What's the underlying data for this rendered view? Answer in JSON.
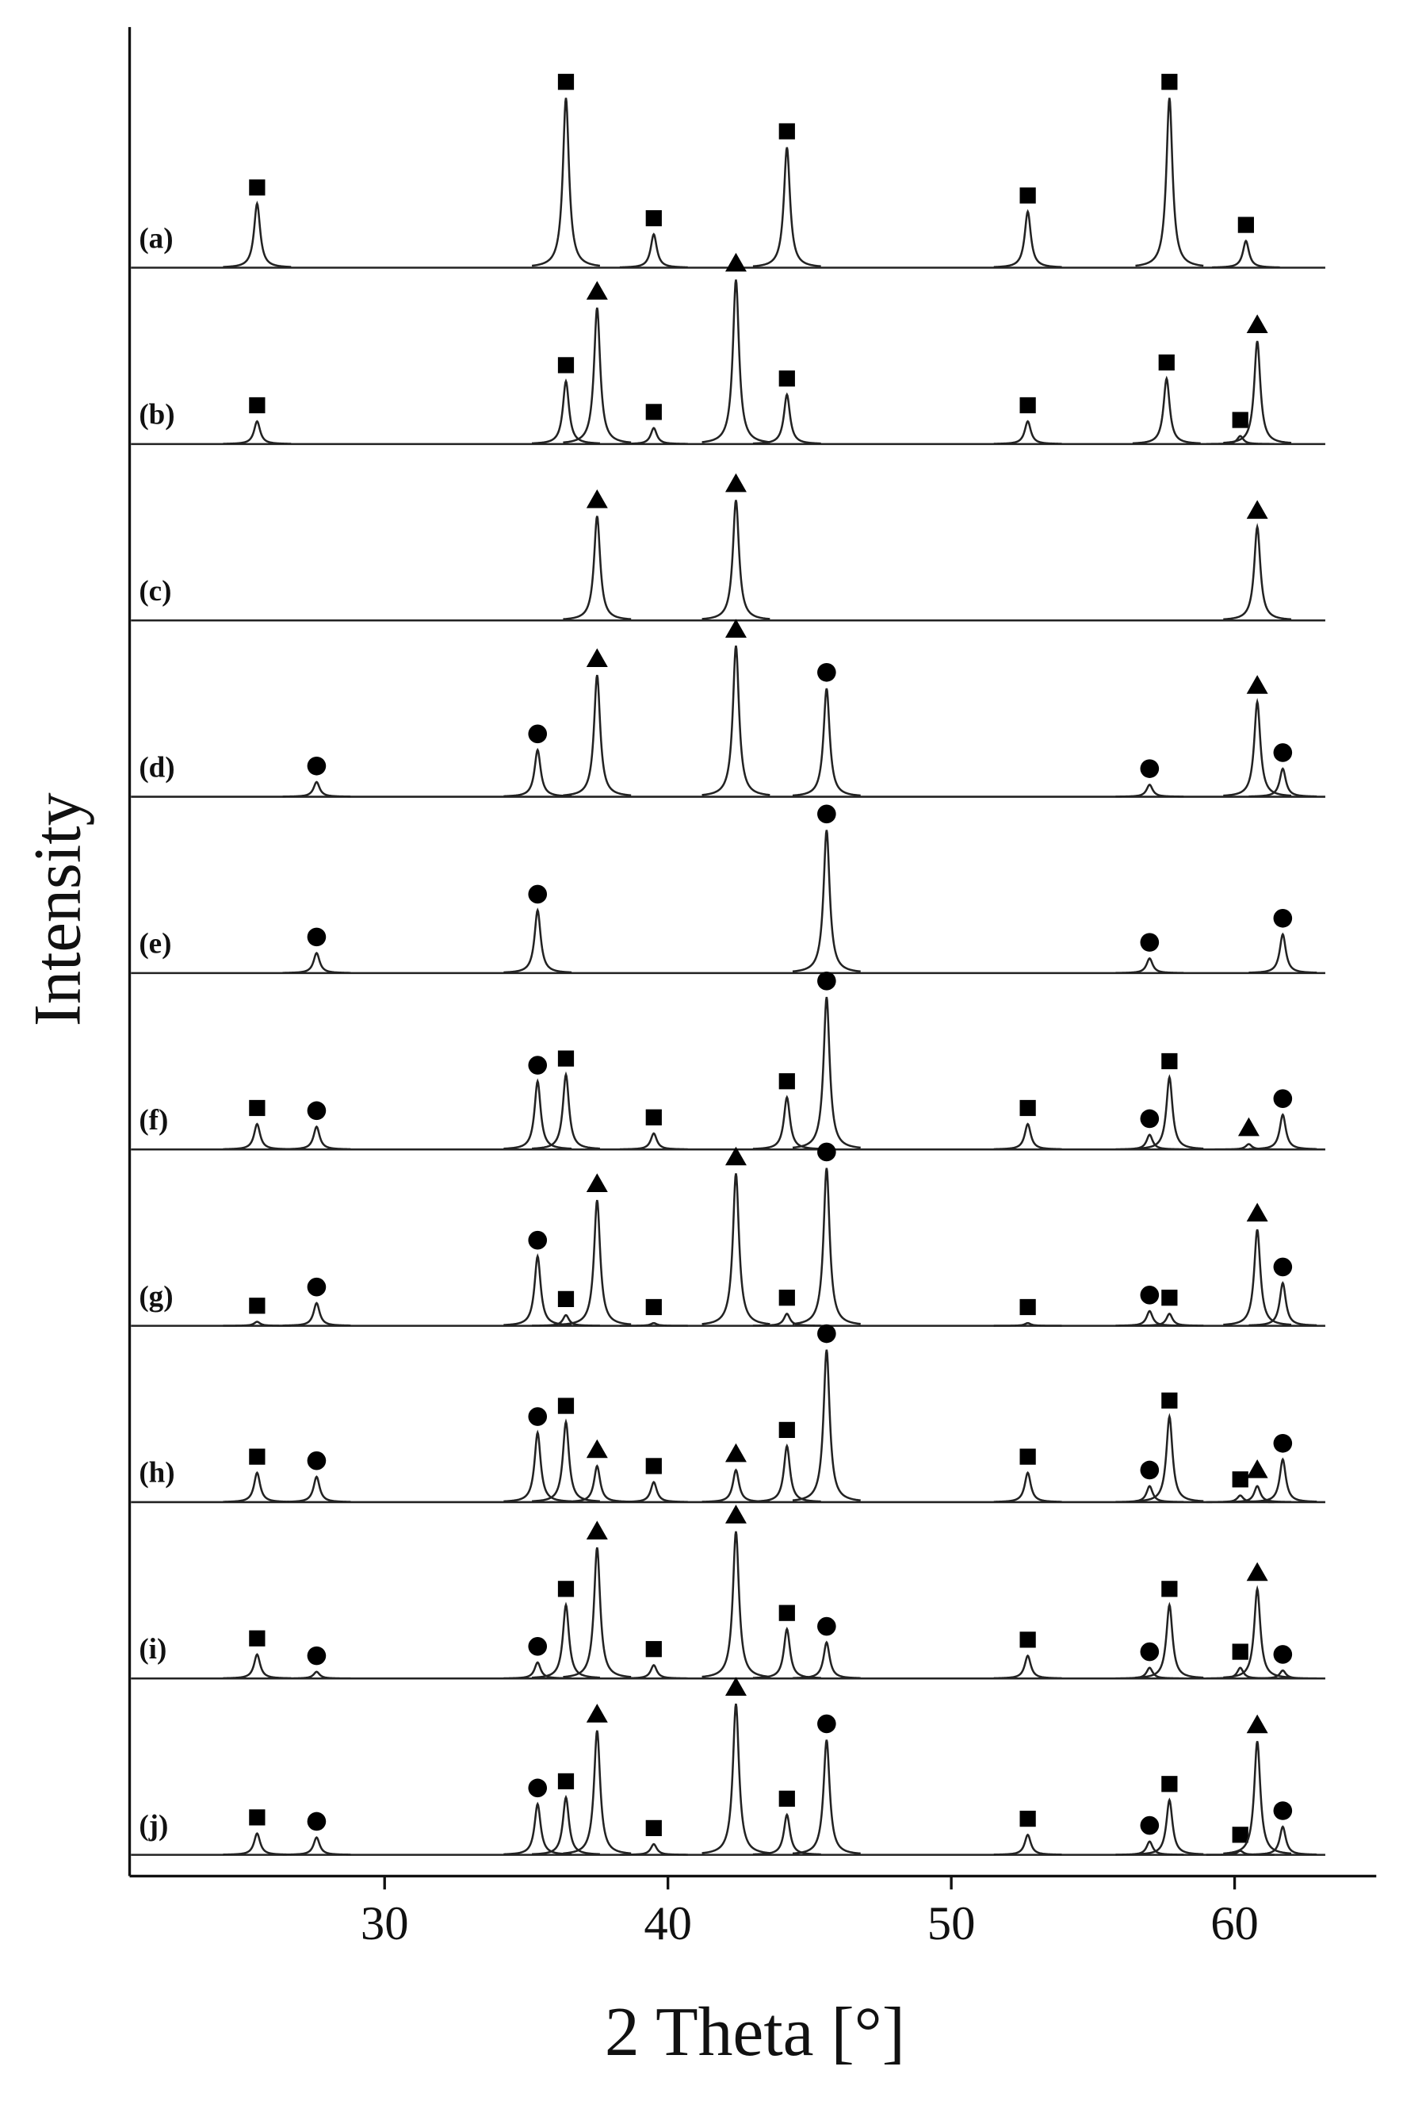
{
  "chart_data": {
    "type": "line",
    "x_label": "2 Theta [°]",
    "y_label": "Intensity",
    "xlim": [
      21,
      65
    ],
    "xticks": [
      30,
      40,
      50,
      60
    ],
    "series": [
      {
        "name": "(a)",
        "x": [
          25.5,
          36.4,
          39.5,
          44.2,
          52.7,
          57.7,
          60.4
        ],
        "values": [
          48,
          127,
          25,
          90,
          42,
          127,
          20
        ],
        "markers": [
          "square",
          "square",
          "square",
          "square",
          "square",
          "square",
          "square"
        ]
      },
      {
        "name": "(b)",
        "x": [
          25.5,
          36.4,
          37.5,
          39.5,
          42.4,
          44.2,
          52.7,
          57.6,
          60.2,
          60.8
        ],
        "values": [
          17,
          47,
          102,
          12,
          123,
          37,
          17,
          49,
          6,
          77
        ],
        "markers": [
          "square",
          "square",
          "triangle",
          "square",
          "triangle",
          "square",
          "square",
          "square",
          "square",
          "triangle"
        ]
      },
      {
        "name": "(c)",
        "x": [
          37.5,
          42.4,
          60.8
        ],
        "values": [
          78,
          90,
          70
        ],
        "markers": [
          "triangle",
          "triangle",
          "triangle"
        ]
      },
      {
        "name": "(d)",
        "x": [
          27.6,
          35.4,
          37.5,
          42.4,
          45.6,
          57.0,
          60.8,
          61.7
        ],
        "values": [
          11,
          35,
          91,
          113,
          81,
          9,
          71,
          21
        ],
        "markers": [
          "circle",
          "circle",
          "triangle",
          "triangle",
          "circle",
          "circle",
          "triangle",
          "circle"
        ]
      },
      {
        "name": "(e)",
        "x": [
          27.6,
          35.4,
          45.6,
          57.0,
          61.7
        ],
        "values": [
          15,
          47,
          107,
          11,
          29
        ],
        "markers": [
          "circle",
          "circle",
          "circle",
          "circle",
          "circle"
        ]
      },
      {
        "name": "(f)",
        "x": [
          25.5,
          27.6,
          35.4,
          36.4,
          39.5,
          44.2,
          45.6,
          52.7,
          57.0,
          57.7,
          60.5,
          61.7
        ],
        "values": [
          19,
          17,
          51,
          56,
          12,
          39,
          114,
          19,
          11,
          54,
          4,
          26
        ],
        "markers": [
          "square",
          "circle",
          "circle",
          "square",
          "square",
          "square",
          "circle",
          "square",
          "circle",
          "square",
          "triangle",
          "circle"
        ]
      },
      {
        "name": "(g)",
        "x": [
          25.5,
          27.6,
          35.4,
          36.4,
          37.5,
          39.5,
          42.4,
          44.2,
          45.6,
          52.7,
          57.0,
          57.7,
          60.8,
          61.7
        ],
        "values": [
          3,
          17,
          52,
          8,
          94,
          2,
          114,
          9,
          118,
          2,
          11,
          9,
          72,
          32
        ],
        "markers": [
          "square",
          "circle",
          "circle",
          "square",
          "triangle",
          "square",
          "triangle",
          "square",
          "circle",
          "square",
          "circle",
          "square",
          "triangle",
          "circle"
        ]
      },
      {
        "name": "(h)",
        "x": [
          25.5,
          27.6,
          35.4,
          36.4,
          37.5,
          39.5,
          42.4,
          44.2,
          45.6,
          52.7,
          57.0,
          57.7,
          60.2,
          60.8,
          61.7
        ],
        "values": [
          22,
          19,
          52,
          60,
          27,
          15,
          24,
          42,
          114,
          22,
          12,
          64,
          5,
          12,
          32
        ],
        "markers": [
          "square",
          "circle",
          "circle",
          "square",
          "triangle",
          "square",
          "triangle",
          "square",
          "circle",
          "square",
          "circle",
          "square",
          "square",
          "triangle",
          "circle"
        ]
      },
      {
        "name": "(i)",
        "x": [
          25.5,
          27.6,
          35.4,
          36.4,
          37.5,
          39.5,
          42.4,
          44.2,
          45.6,
          52.7,
          57.0,
          57.7,
          60.2,
          60.8,
          61.7
        ],
        "values": [
          18,
          5,
          12,
          55,
          98,
          10,
          110,
          37,
          27,
          17,
          8,
          55,
          8,
          67,
          6
        ],
        "markers": [
          "square",
          "circle",
          "circle",
          "square",
          "triangle",
          "square",
          "triangle",
          "square",
          "circle",
          "square",
          "circle",
          "square",
          "square",
          "triangle",
          "circle"
        ]
      },
      {
        "name": "(j)",
        "x": [
          25.5,
          27.6,
          35.4,
          36.4,
          37.5,
          39.5,
          42.4,
          44.2,
          45.6,
          52.7,
          57.0,
          57.7,
          60.2,
          60.8,
          61.7
        ],
        "values": [
          16,
          13,
          38,
          43,
          93,
          8,
          113,
          30,
          86,
          15,
          10,
          41,
          3,
          85,
          21
        ],
        "markers": [
          "square",
          "circle",
          "circle",
          "square",
          "triangle",
          "square",
          "triangle",
          "square",
          "circle",
          "square",
          "circle",
          "square",
          "square",
          "triangle",
          "circle"
        ]
      }
    ]
  }
}
